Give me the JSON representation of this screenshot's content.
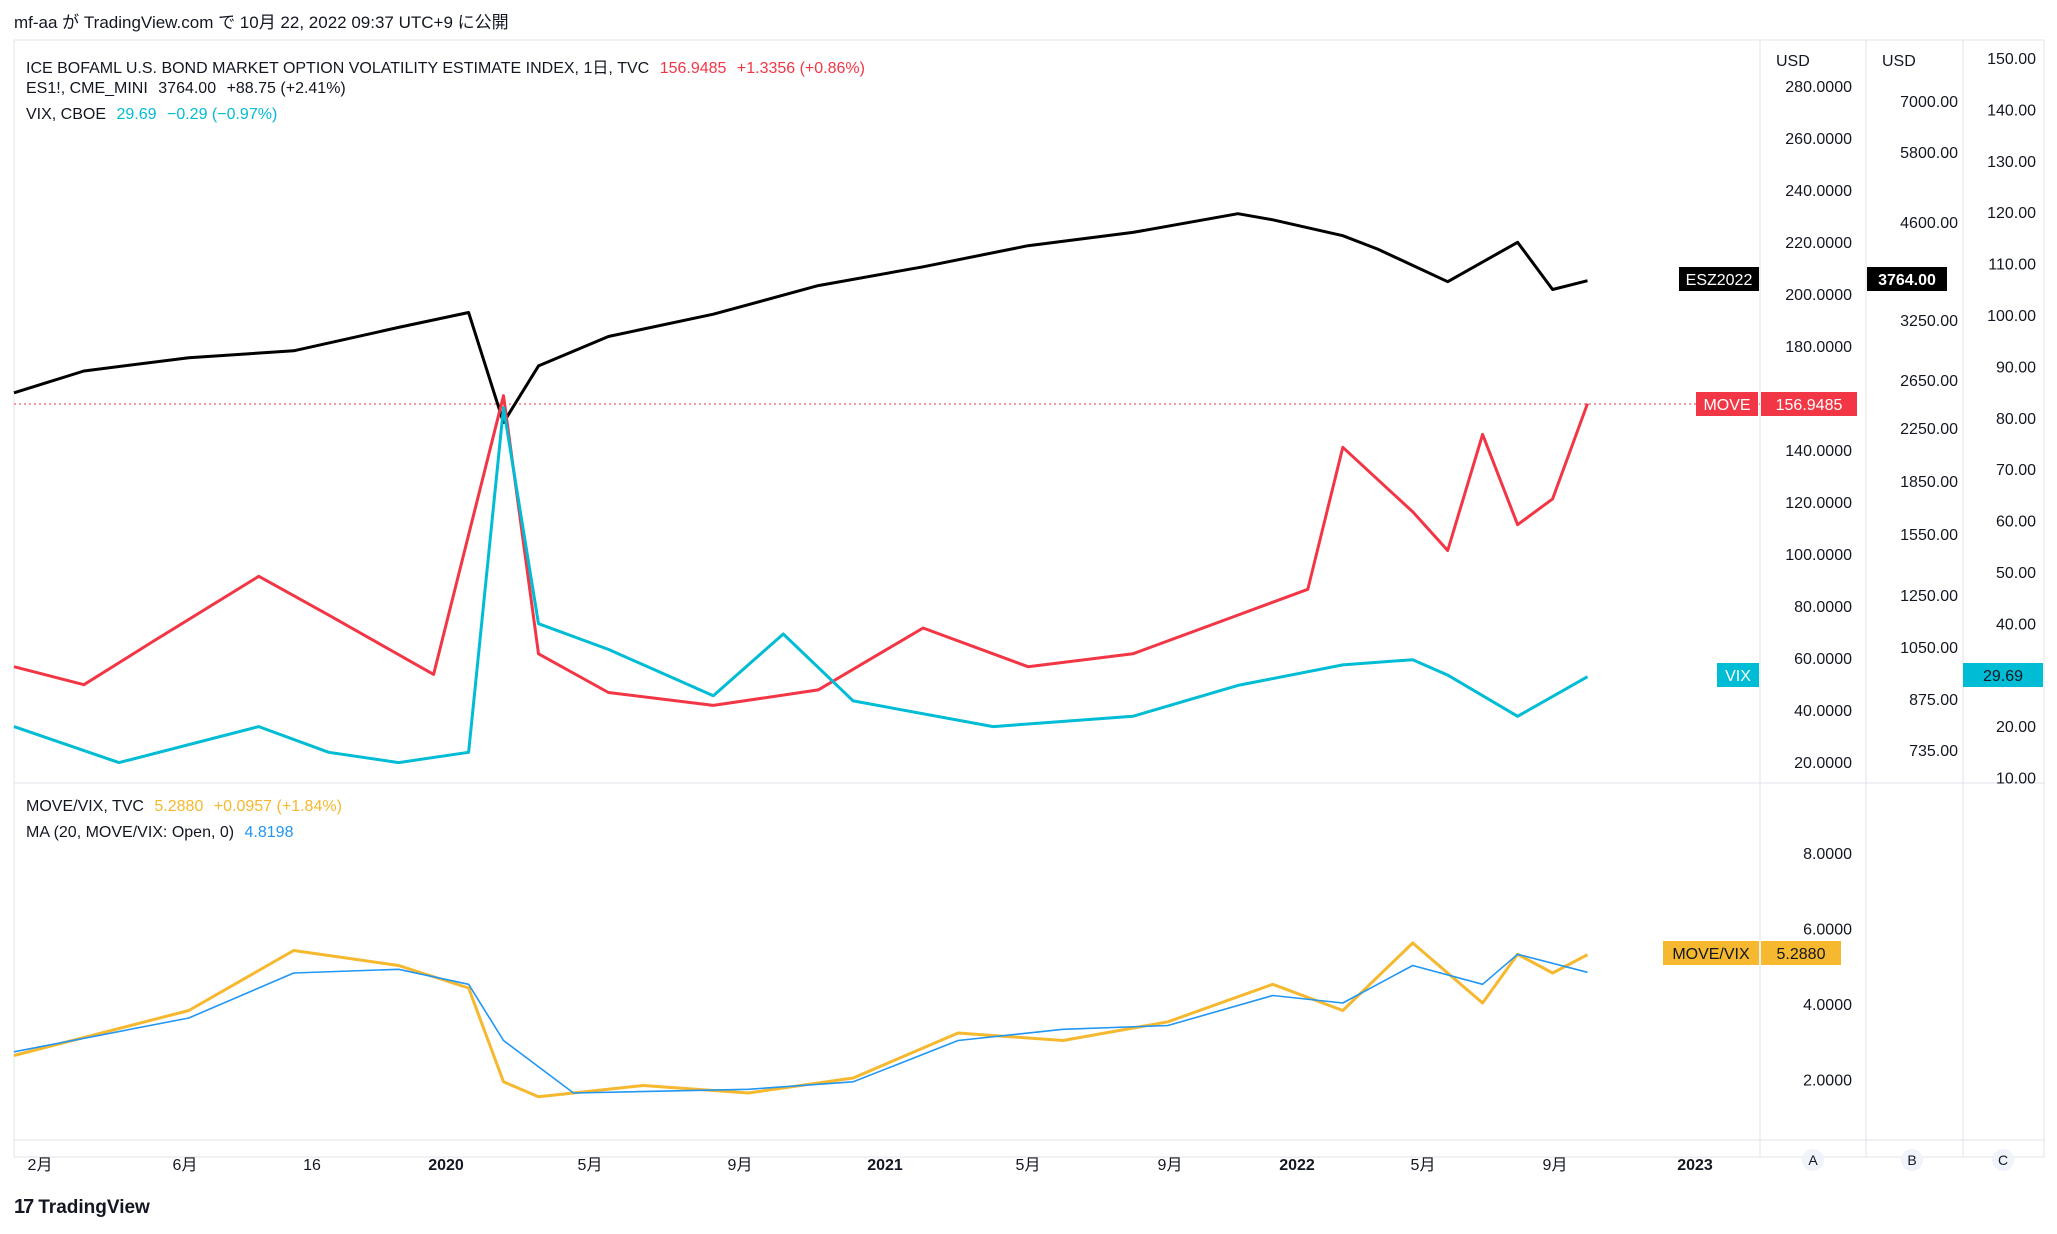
{
  "header": {
    "text": "mf-aa が TradingView.com で 10月 22, 2022 09:37 UTC+9 に公開"
  },
  "footer": {
    "logo": "17",
    "brand": "TradingView"
  },
  "colors": {
    "move": "#f23645",
    "es": "#000000",
    "vix": "#00bcd4",
    "ratio": "#f5b82e",
    "ma": "#2196f3",
    "grid": "#e0e3eb",
    "text": "#131722"
  },
  "legend_top": {
    "move": {
      "name": "ICE BOFAML U.S. BOND MARKET OPTION VOLATILITY ESTIMATE INDEX, 1日, TVC",
      "value": "156.9485",
      "change": "+1.3356 (+0.86%)"
    },
    "es": {
      "name": "ES1!, CME_MINI",
      "value": "3764.00",
      "change": "+88.75 (+2.41%)"
    },
    "vix": {
      "name": "VIX, CBOE",
      "value": "29.69",
      "change": "−0.29 (−0.97%)"
    }
  },
  "legend_bottom": {
    "ratio": {
      "name": "MOVE/VIX, TVC",
      "value": "5.2880",
      "change": "+0.0957 (+1.84%)"
    },
    "ma": {
      "name": "MA (20, MOVE/VIX: Open, 0)",
      "value": "4.8198"
    }
  },
  "axes": {
    "unit_a": "USD",
    "unit_b": "USD",
    "move_ticks": [
      "280.0000",
      "260.0000",
      "240.0000",
      "220.0000",
      "200.0000",
      "180.0000",
      "160.0000",
      "140.0000",
      "120.0000",
      "100.0000",
      "80.0000",
      "60.0000",
      "40.0000",
      "20.0000"
    ],
    "es_ticks": [
      "7000.00",
      "5800.00",
      "4600.00",
      "3250.00",
      "2650.00",
      "2250.00",
      "1850.00",
      "1550.00",
      "1250.00",
      "1050.00",
      "875.00",
      "735.00"
    ],
    "vix_ticks": [
      "150.00",
      "140.00",
      "130.00",
      "120.00",
      "110.00",
      "100.00",
      "90.00",
      "80.00",
      "70.00",
      "60.00",
      "50.00",
      "40.00",
      "30.00",
      "20.00",
      "10.00"
    ],
    "ratio_ticks": [
      "8.0000",
      "6.0000",
      "4.0000",
      "2.0000"
    ],
    "x_ticks": [
      "2月",
      "6月",
      "16",
      "2020",
      "5月",
      "9月",
      "2021",
      "5月",
      "9月",
      "2022",
      "5月",
      "9月",
      "2023"
    ],
    "scale_buttons": [
      "A",
      "B",
      "C"
    ]
  },
  "badges": {
    "es_name": "ESZ2022",
    "es_value": "3764.00",
    "move_name": "MOVE",
    "move_value": "156.9485",
    "vix_name": "VIX",
    "vix_value": "29.69",
    "ratio_name": "MOVE/VIX",
    "ratio_value": "5.2880"
  },
  "chart_data": {
    "type": "line",
    "title": "ICE BOFAML U.S. BOND MARKET OPTION VOLATILITY ESTIMATE INDEX, 1日, TVC",
    "x_range": [
      "2019-01",
      "2022-10"
    ],
    "series": [
      {
        "name": "ES1!, CME_MINI",
        "axis": "es",
        "x": [
          "2019-01",
          "2019-03",
          "2019-06",
          "2019-09",
          "2019-12",
          "2020-02",
          "2020-03",
          "2020-04",
          "2020-06",
          "2020-09",
          "2020-12",
          "2021-03",
          "2021-06",
          "2021-09",
          "2021-12",
          "2022-01",
          "2022-03",
          "2022-04",
          "2022-06",
          "2022-08",
          "2022-09",
          "2022-10"
        ],
        "values": [
          2550,
          2750,
          2880,
          2950,
          3200,
          3370,
          2300,
          2800,
          3100,
          3350,
          3700,
          3950,
          4250,
          4450,
          4750,
          4650,
          4400,
          4200,
          3750,
          4300,
          3650,
          3764
        ]
      },
      {
        "name": "ICE BOFAML U.S. BOND MARKET OPTION VOLATILITY ESTIMATE INDEX",
        "axis": "move",
        "x": [
          "2019-01",
          "2019-03",
          "2019-05",
          "2019-08",
          "2019-10",
          "2020-01",
          "2020-03",
          "2020-04",
          "2020-06",
          "2020-09",
          "2020-12",
          "2021-03",
          "2021-06",
          "2021-09",
          "2021-12",
          "2022-02",
          "2022-03",
          "2022-05",
          "2022-06",
          "2022-07",
          "2022-08",
          "2022-09",
          "2022-10"
        ],
        "values": [
          55,
          48,
          65,
          90,
          75,
          52,
          160,
          60,
          45,
          40,
          46,
          70,
          55,
          60,
          75,
          85,
          140,
          115,
          100,
          145,
          110,
          120,
          156.9485
        ]
      },
      {
        "name": "VIX, CBOE",
        "axis": "vix",
        "x": [
          "2019-01",
          "2019-04",
          "2019-08",
          "2019-10",
          "2019-12",
          "2020-02",
          "2020-03",
          "2020-04",
          "2020-06",
          "2020-09",
          "2020-11",
          "2021-01",
          "2021-05",
          "2021-09",
          "2021-12",
          "2022-03",
          "2022-05",
          "2022-06",
          "2022-08",
          "2022-10"
        ],
        "values": [
          20,
          13,
          20,
          15,
          13,
          15,
          82,
          40,
          35,
          26,
          38,
          25,
          20,
          22,
          28,
          32,
          33,
          30,
          22,
          29.69
        ]
      },
      {
        "name": "MOVE/VIX, TVC",
        "axis": "ratio",
        "x": [
          "2019-01",
          "2019-06",
          "2019-09",
          "2019-12",
          "2020-02",
          "2020-03",
          "2020-04",
          "2020-07",
          "2020-10",
          "2021-01",
          "2021-04",
          "2021-07",
          "2021-10",
          "2022-01",
          "2022-03",
          "2022-05",
          "2022-07",
          "2022-08",
          "2022-09",
          "2022-10"
        ],
        "values": [
          2.6,
          3.8,
          5.4,
          5.0,
          4.4,
          1.9,
          1.5,
          1.8,
          1.6,
          2.0,
          3.2,
          3.0,
          3.5,
          4.5,
          3.8,
          5.6,
          4.0,
          5.3,
          4.8,
          5.288
        ]
      },
      {
        "name": "MA (20, MOVE/VIX: Open, 0)",
        "axis": "ratio",
        "x": [
          "2019-01",
          "2019-06",
          "2019-09",
          "2019-12",
          "2020-02",
          "2020-03",
          "2020-05",
          "2020-10",
          "2021-01",
          "2021-04",
          "2021-07",
          "2021-10",
          "2022-01",
          "2022-03",
          "2022-05",
          "2022-07",
          "2022-08",
          "2022-10"
        ],
        "values": [
          2.7,
          3.6,
          4.8,
          4.9,
          4.5,
          3.0,
          1.6,
          1.7,
          1.9,
          3.0,
          3.3,
          3.4,
          4.2,
          4.0,
          5.0,
          4.5,
          5.3,
          4.8198
        ]
      }
    ],
    "y_ranges": {
      "move": [
        10,
        285
      ],
      "vix": [
        10,
        150
      ],
      "ratio": [
        0,
        9
      ]
    },
    "grid": false,
    "legend": "top-left"
  }
}
